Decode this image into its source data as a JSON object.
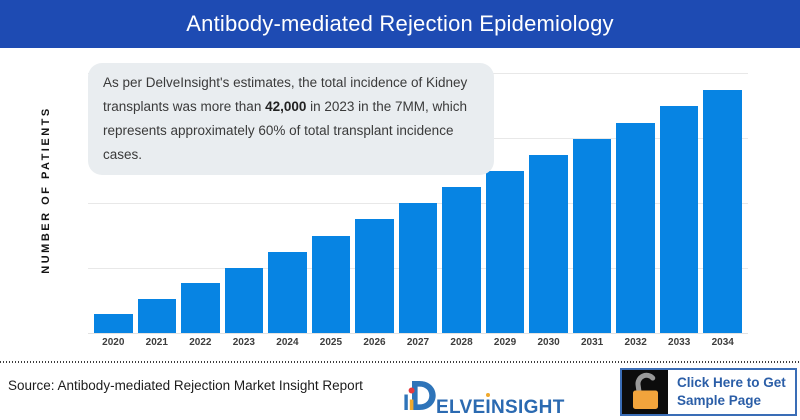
{
  "header": {
    "title": "Antibody-mediated Rejection Epidemiology"
  },
  "annotation": {
    "text_before": "As per DelveInsight's estimates, the total incidence of Kidney transplants was more than ",
    "highlight": "42,000",
    "text_after": " in 2023 in the 7MM, which represents approximately 60% of total transplant incidence cases."
  },
  "chart_data": {
    "type": "bar",
    "title": "Antibody-mediated Rejection Epidemiology",
    "ylabel": "NUMBER OF PATIENTS",
    "xlabel": "",
    "categories": [
      "2020",
      "2021",
      "2022",
      "2023",
      "2024",
      "2025",
      "2026",
      "2027",
      "2028",
      "2029",
      "2030",
      "2031",
      "2032",
      "2033",
      "2034"
    ],
    "values": [
      12000,
      22000,
      32000,
      42000,
      52500,
      63000,
      73500,
      84000,
      94500,
      104500,
      115000,
      125500,
      136000,
      146500,
      157000
    ],
    "ylim": [
      0,
      168000
    ],
    "gridlines": [
      42000,
      84000,
      126000,
      168000
    ],
    "grid": "horizontal",
    "legend_position": "none",
    "y_tick_labels_visible": false,
    "bar_color": "#0784e3"
  },
  "footer": {
    "source": "Source: Antibody-mediated Rejection Market Insight Report",
    "logo": {
      "mark": "D",
      "text_part1": "ELVE",
      "text_i": "I",
      "text_part2": "NSIGHT"
    },
    "button": {
      "line1": "Click Here to Get",
      "line2": "Sample Page",
      "icon": "open-padlock-icon"
    }
  },
  "colors": {
    "header_bg": "#1e4bb3",
    "bar": "#0784e3",
    "annotation_bg": "#e9edf0",
    "gridline": "#e8e8e8",
    "button_text": "#2b5ea7",
    "button_border": "#3a6db6",
    "lock_body": "#f2a43c",
    "lock_shackle": "#999999",
    "logo_blue": "#2e74b9",
    "logo_red": "#e4393f",
    "logo_yellow": "#f0a92c"
  }
}
